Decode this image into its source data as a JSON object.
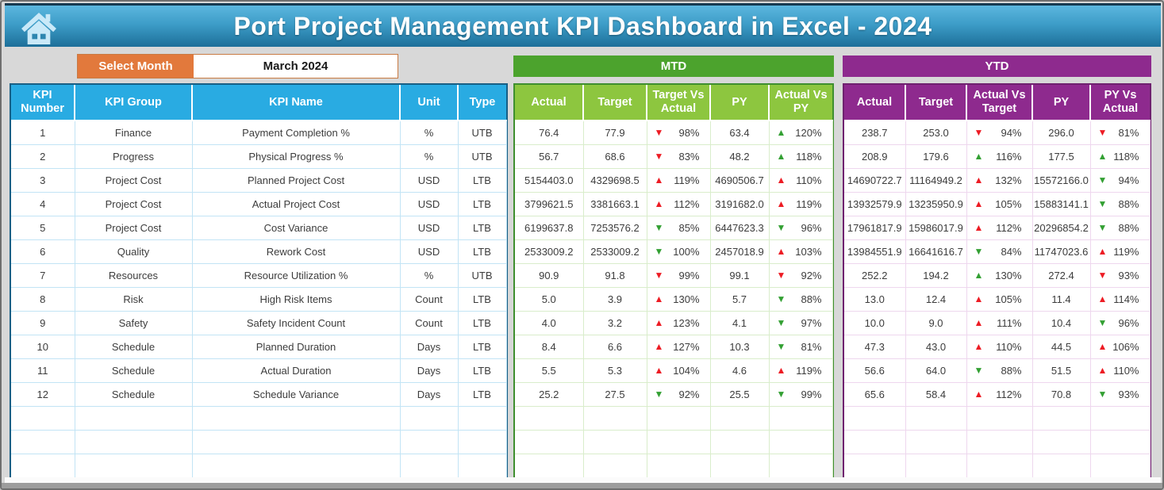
{
  "page": {
    "title": "Port Project Management KPI Dashboard in Excel - 2024"
  },
  "month_selector": {
    "label": "Select Month",
    "value": "March 2024"
  },
  "colors": {
    "blue_header": "#29abe2",
    "mtd_dark_green": "#4ca32d",
    "mtd_light_green": "#8dc63f",
    "ytd_purple": "#8e2a8e",
    "orange": "#e2793c",
    "arrow_red": "#ed1c24",
    "arrow_green": "#33a033",
    "topbar_top": "#5cb6de",
    "topbar_bottom": "#1d6f99"
  },
  "kpi_table": {
    "headers": [
      "KPI Number",
      "KPI Group",
      "KPI Name",
      "Unit",
      "Type"
    ],
    "empty_rows": 3,
    "rows": [
      [
        "1",
        "Finance",
        "Payment Completion %",
        "%",
        "UTB"
      ],
      [
        "2",
        "Progress",
        "Physical Progress %",
        "%",
        "UTB"
      ],
      [
        "3",
        "Project Cost",
        "Planned Project Cost",
        "USD",
        "LTB"
      ],
      [
        "4",
        "Project Cost",
        "Actual Project Cost",
        "USD",
        "LTB"
      ],
      [
        "5",
        "Project Cost",
        "Cost Variance",
        "USD",
        "LTB"
      ],
      [
        "6",
        "Quality",
        "Rework Cost",
        "USD",
        "LTB"
      ],
      [
        "7",
        "Resources",
        "Resource Utilization %",
        "%",
        "UTB"
      ],
      [
        "8",
        "Risk",
        "High Risk Items",
        "Count",
        "LTB"
      ],
      [
        "9",
        "Safety",
        "Safety Incident Count",
        "Count",
        "LTB"
      ],
      [
        "10",
        "Schedule",
        "Planned Duration",
        "Days",
        "LTB"
      ],
      [
        "11",
        "Schedule",
        "Actual Duration",
        "Days",
        "LTB"
      ],
      [
        "12",
        "Schedule",
        "Schedule Variance",
        "Days",
        "LTB"
      ]
    ]
  },
  "mtd": {
    "title": "MTD",
    "headers": [
      "Actual",
      "Target",
      "Target Vs Actual",
      "PY",
      "Actual Vs PY"
    ],
    "empty_rows": 3,
    "rows": [
      [
        "76.4",
        "77.9",
        {
          "dir": "down",
          "color": "red",
          "value": "98%"
        },
        "63.4",
        {
          "dir": "up",
          "color": "green",
          "value": "120%"
        }
      ],
      [
        "56.7",
        "68.6",
        {
          "dir": "down",
          "color": "red",
          "value": "83%"
        },
        "48.2",
        {
          "dir": "up",
          "color": "green",
          "value": "118%"
        }
      ],
      [
        "5154403.0",
        "4329698.5",
        {
          "dir": "up",
          "color": "red",
          "value": "119%"
        },
        "4690506.7",
        {
          "dir": "up",
          "color": "red",
          "value": "110%"
        }
      ],
      [
        "3799621.5",
        "3381663.1",
        {
          "dir": "up",
          "color": "red",
          "value": "112%"
        },
        "3191682.0",
        {
          "dir": "up",
          "color": "red",
          "value": "119%"
        }
      ],
      [
        "6199637.8",
        "7253576.2",
        {
          "dir": "down",
          "color": "green",
          "value": "85%"
        },
        "6447623.3",
        {
          "dir": "down",
          "color": "green",
          "value": "96%"
        }
      ],
      [
        "2533009.2",
        "2533009.2",
        {
          "dir": "down",
          "color": "green",
          "value": "100%"
        },
        "2457018.9",
        {
          "dir": "up",
          "color": "red",
          "value": "103%"
        }
      ],
      [
        "90.9",
        "91.8",
        {
          "dir": "down",
          "color": "red",
          "value": "99%"
        },
        "99.1",
        {
          "dir": "down",
          "color": "red",
          "value": "92%"
        }
      ],
      [
        "5.0",
        "3.9",
        {
          "dir": "up",
          "color": "red",
          "value": "130%"
        },
        "5.7",
        {
          "dir": "down",
          "color": "green",
          "value": "88%"
        }
      ],
      [
        "4.0",
        "3.2",
        {
          "dir": "up",
          "color": "red",
          "value": "123%"
        },
        "4.1",
        {
          "dir": "down",
          "color": "green",
          "value": "97%"
        }
      ],
      [
        "8.4",
        "6.6",
        {
          "dir": "up",
          "color": "red",
          "value": "127%"
        },
        "10.3",
        {
          "dir": "down",
          "color": "green",
          "value": "81%"
        }
      ],
      [
        "5.5",
        "5.3",
        {
          "dir": "up",
          "color": "red",
          "value": "104%"
        },
        "4.6",
        {
          "dir": "up",
          "color": "red",
          "value": "119%"
        }
      ],
      [
        "25.2",
        "27.5",
        {
          "dir": "down",
          "color": "green",
          "value": "92%"
        },
        "25.5",
        {
          "dir": "down",
          "color": "green",
          "value": "99%"
        }
      ]
    ]
  },
  "ytd": {
    "title": "YTD",
    "headers": [
      "Actual",
      "Target",
      "Actual Vs Target",
      "PY",
      "PY Vs Actual"
    ],
    "empty_rows": 3,
    "rows": [
      [
        "238.7",
        "253.0",
        {
          "dir": "down",
          "color": "red",
          "value": "94%"
        },
        "296.0",
        {
          "dir": "down",
          "color": "red",
          "value": "81%"
        }
      ],
      [
        "208.9",
        "179.6",
        {
          "dir": "up",
          "color": "green",
          "value": "116%"
        },
        "177.5",
        {
          "dir": "up",
          "color": "green",
          "value": "118%"
        }
      ],
      [
        "14690722.7",
        "11164949.2",
        {
          "dir": "up",
          "color": "red",
          "value": "132%"
        },
        "15572166.0",
        {
          "dir": "down",
          "color": "green",
          "value": "94%"
        }
      ],
      [
        "13932579.9",
        "13235950.9",
        {
          "dir": "up",
          "color": "red",
          "value": "105%"
        },
        "15883141.1",
        {
          "dir": "down",
          "color": "green",
          "value": "88%"
        }
      ],
      [
        "17961817.9",
        "15986017.9",
        {
          "dir": "up",
          "color": "red",
          "value": "112%"
        },
        "20296854.2",
        {
          "dir": "down",
          "color": "green",
          "value": "88%"
        }
      ],
      [
        "13984551.9",
        "16641616.7",
        {
          "dir": "down",
          "color": "green",
          "value": "84%"
        },
        "11747023.6",
        {
          "dir": "up",
          "color": "red",
          "value": "119%"
        }
      ],
      [
        "252.2",
        "194.2",
        {
          "dir": "up",
          "color": "green",
          "value": "130%"
        },
        "272.4",
        {
          "dir": "down",
          "color": "red",
          "value": "93%"
        }
      ],
      [
        "13.0",
        "12.4",
        {
          "dir": "up",
          "color": "red",
          "value": "105%"
        },
        "11.4",
        {
          "dir": "up",
          "color": "red",
          "value": "114%"
        }
      ],
      [
        "10.0",
        "9.0",
        {
          "dir": "up",
          "color": "red",
          "value": "111%"
        },
        "10.4",
        {
          "dir": "down",
          "color": "green",
          "value": "96%"
        }
      ],
      [
        "47.3",
        "43.0",
        {
          "dir": "up",
          "color": "red",
          "value": "110%"
        },
        "44.5",
        {
          "dir": "up",
          "color": "red",
          "value": "106%"
        }
      ],
      [
        "56.6",
        "64.0",
        {
          "dir": "down",
          "color": "green",
          "value": "88%"
        },
        "51.5",
        {
          "dir": "up",
          "color": "red",
          "value": "110%"
        }
      ],
      [
        "65.6",
        "58.4",
        {
          "dir": "up",
          "color": "red",
          "value": "112%"
        },
        "70.8",
        {
          "dir": "down",
          "color": "green",
          "value": "93%"
        }
      ]
    ]
  }
}
